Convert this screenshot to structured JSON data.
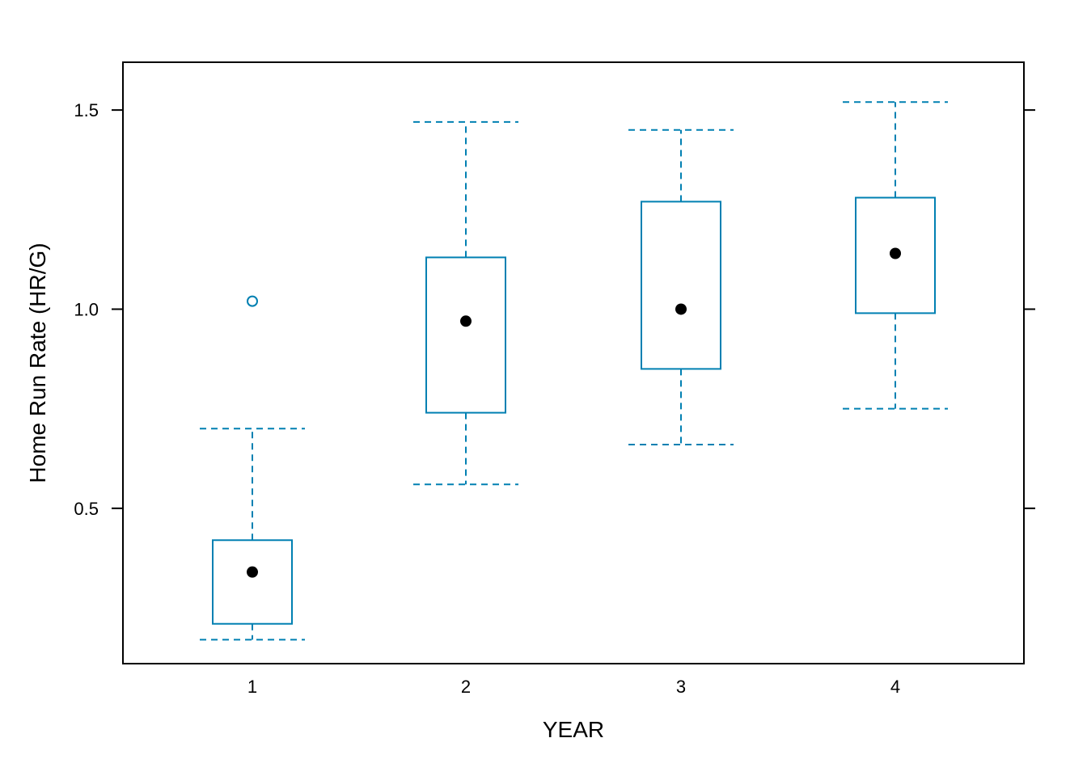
{
  "chart_data": {
    "type": "box",
    "xlabel": "YEAR",
    "ylabel": "Home Run Rate (HR/G)",
    "ylim": [
      0.11,
      1.62
    ],
    "yticks": [
      0.5,
      1.0,
      1.5
    ],
    "ytick_labels": [
      "0.5",
      "1.0",
      "1.5"
    ],
    "categories": [
      "1",
      "2",
      "3",
      "4"
    ],
    "boxes": [
      {
        "category": "1",
        "whisker_low": 0.17,
        "q1": 0.21,
        "median": 0.34,
        "q3": 0.42,
        "whisker_high": 0.7,
        "outliers": [
          1.02
        ]
      },
      {
        "category": "2",
        "whisker_low": 0.56,
        "q1": 0.74,
        "median": 0.97,
        "q3": 1.13,
        "whisker_high": 1.47,
        "outliers": []
      },
      {
        "category": "3",
        "whisker_low": 0.66,
        "q1": 0.85,
        "median": 1.0,
        "q3": 1.27,
        "whisker_high": 1.45,
        "outliers": []
      },
      {
        "category": "4",
        "whisker_low": 0.75,
        "q1": 0.99,
        "median": 1.14,
        "q3": 1.28,
        "whisker_high": 1.52,
        "outliers": []
      }
    ],
    "grid": false,
    "colors": {
      "box": "#0080b2",
      "median_dot": "#000000",
      "frame": "#000000"
    }
  }
}
